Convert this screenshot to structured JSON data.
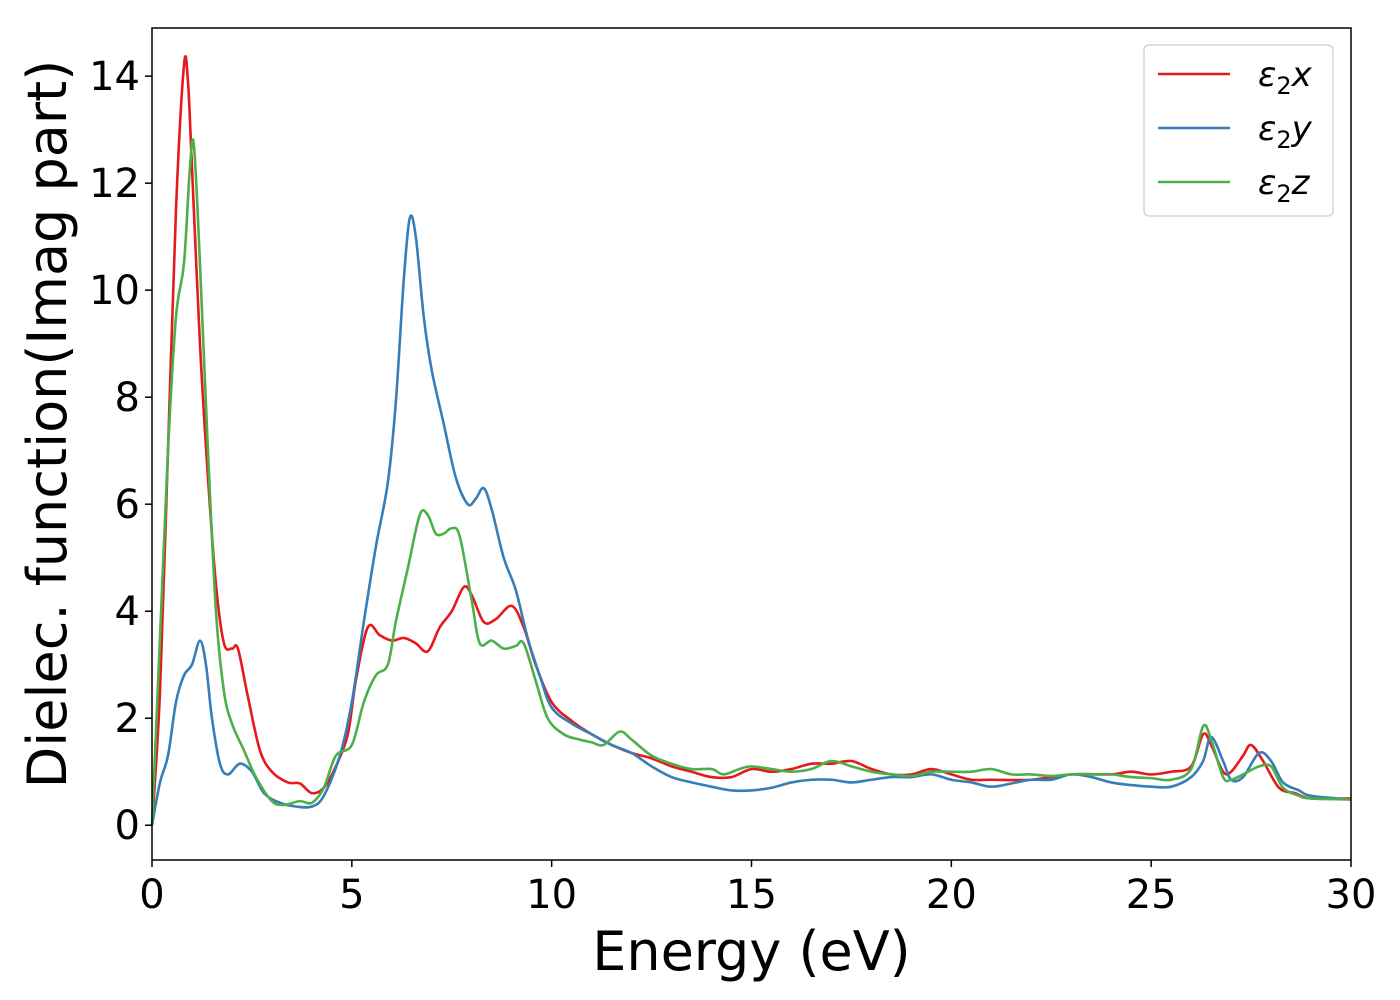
{
  "chart_data": {
    "type": "line",
    "xlabel": "Energy (eV)",
    "ylabel": "Dielec. function(Imag part)",
    "xlim": [
      0,
      30
    ],
    "ylim": [
      -0.65,
      14.9
    ],
    "xticks": [
      0,
      5,
      10,
      15,
      20,
      25,
      30
    ],
    "yticks": [
      0,
      2,
      4,
      6,
      8,
      10,
      12,
      14
    ],
    "grid": false,
    "legend_position": "top-right",
    "series": [
      {
        "name": "ε2x",
        "legend_base": "ε",
        "legend_sub": "2",
        "legend_suffix": "x",
        "color": "#e41a1c",
        "points": [
          [
            0,
            0
          ],
          [
            0.2,
            2.5
          ],
          [
            0.4,
            7.0
          ],
          [
            0.6,
            11.5
          ],
          [
            0.8,
            14.2
          ],
          [
            0.9,
            13.9
          ],
          [
            1.0,
            12.3
          ],
          [
            1.2,
            9.0
          ],
          [
            1.4,
            6.5
          ],
          [
            1.6,
            4.5
          ],
          [
            1.8,
            3.4
          ],
          [
            2.0,
            3.3
          ],
          [
            2.15,
            3.3
          ],
          [
            2.4,
            2.4
          ],
          [
            2.7,
            1.4
          ],
          [
            3.0,
            1.0
          ],
          [
            3.4,
            0.8
          ],
          [
            3.7,
            0.78
          ],
          [
            4.0,
            0.6
          ],
          [
            4.3,
            0.7
          ],
          [
            4.6,
            1.1
          ],
          [
            4.9,
            1.7
          ],
          [
            5.1,
            2.7
          ],
          [
            5.4,
            3.7
          ],
          [
            5.7,
            3.55
          ],
          [
            6.0,
            3.45
          ],
          [
            6.3,
            3.5
          ],
          [
            6.6,
            3.4
          ],
          [
            6.9,
            3.25
          ],
          [
            7.2,
            3.7
          ],
          [
            7.5,
            4.0
          ],
          [
            7.8,
            4.45
          ],
          [
            8.0,
            4.3
          ],
          [
            8.3,
            3.8
          ],
          [
            8.6,
            3.85
          ],
          [
            9.0,
            4.1
          ],
          [
            9.3,
            3.7
          ],
          [
            9.6,
            3.0
          ],
          [
            10.0,
            2.3
          ],
          [
            10.5,
            1.95
          ],
          [
            11.0,
            1.7
          ],
          [
            11.5,
            1.5
          ],
          [
            12.0,
            1.35
          ],
          [
            12.5,
            1.25
          ],
          [
            13.0,
            1.1
          ],
          [
            13.5,
            1.0
          ],
          [
            14.0,
            0.9
          ],
          [
            14.5,
            0.9
          ],
          [
            15.0,
            1.05
          ],
          [
            15.5,
            1.0
          ],
          [
            16.0,
            1.05
          ],
          [
            16.5,
            1.15
          ],
          [
            17.0,
            1.15
          ],
          [
            17.5,
            1.2
          ],
          [
            18.0,
            1.05
          ],
          [
            18.5,
            0.95
          ],
          [
            19.0,
            0.95
          ],
          [
            19.5,
            1.05
          ],
          [
            20.0,
            0.95
          ],
          [
            20.5,
            0.85
          ],
          [
            21.0,
            0.85
          ],
          [
            22.0,
            0.85
          ],
          [
            23.0,
            0.95
          ],
          [
            24.0,
            0.95
          ],
          [
            24.5,
            1.0
          ],
          [
            25.0,
            0.95
          ],
          [
            25.5,
            1.0
          ],
          [
            26.0,
            1.1
          ],
          [
            26.3,
            1.7
          ],
          [
            26.5,
            1.5
          ],
          [
            26.8,
            1.0
          ],
          [
            27.0,
            1.0
          ],
          [
            27.3,
            1.3
          ],
          [
            27.5,
            1.5
          ],
          [
            27.8,
            1.2
          ],
          [
            28.2,
            0.7
          ],
          [
            28.6,
            0.6
          ],
          [
            29.0,
            0.5
          ],
          [
            30.0,
            0.5
          ]
        ]
      },
      {
        "name": "ε2y",
        "legend_base": "ε",
        "legend_sub": "2",
        "legend_suffix": "y",
        "color": "#377eb8",
        "points": [
          [
            0,
            0
          ],
          [
            0.2,
            0.8
          ],
          [
            0.4,
            1.3
          ],
          [
            0.6,
            2.3
          ],
          [
            0.8,
            2.8
          ],
          [
            1.0,
            3.0
          ],
          [
            1.2,
            3.45
          ],
          [
            1.35,
            3.0
          ],
          [
            1.5,
            2.0
          ],
          [
            1.7,
            1.15
          ],
          [
            1.9,
            0.95
          ],
          [
            2.2,
            1.15
          ],
          [
            2.5,
            1.0
          ],
          [
            2.8,
            0.6
          ],
          [
            3.2,
            0.42
          ],
          [
            3.6,
            0.35
          ],
          [
            4.0,
            0.35
          ],
          [
            4.3,
            0.55
          ],
          [
            4.7,
            1.3
          ],
          [
            5.0,
            2.3
          ],
          [
            5.3,
            3.8
          ],
          [
            5.6,
            5.2
          ],
          [
            5.9,
            6.4
          ],
          [
            6.1,
            7.9
          ],
          [
            6.3,
            10.2
          ],
          [
            6.45,
            11.35
          ],
          [
            6.6,
            11.0
          ],
          [
            6.8,
            9.5
          ],
          [
            7.0,
            8.5
          ],
          [
            7.3,
            7.5
          ],
          [
            7.6,
            6.5
          ],
          [
            7.9,
            6.0
          ],
          [
            8.1,
            6.1
          ],
          [
            8.3,
            6.3
          ],
          [
            8.5,
            5.9
          ],
          [
            8.8,
            5.0
          ],
          [
            9.1,
            4.4
          ],
          [
            9.4,
            3.5
          ],
          [
            9.7,
            2.8
          ],
          [
            10.0,
            2.2
          ],
          [
            10.5,
            1.9
          ],
          [
            11.0,
            1.7
          ],
          [
            11.5,
            1.5
          ],
          [
            12.0,
            1.35
          ],
          [
            12.5,
            1.1
          ],
          [
            13.0,
            0.9
          ],
          [
            13.5,
            0.8
          ],
          [
            14.0,
            0.72
          ],
          [
            14.5,
            0.65
          ],
          [
            15.0,
            0.65
          ],
          [
            15.5,
            0.7
          ],
          [
            16.0,
            0.8
          ],
          [
            16.5,
            0.85
          ],
          [
            17.0,
            0.85
          ],
          [
            17.5,
            0.8
          ],
          [
            18.0,
            0.85
          ],
          [
            18.5,
            0.9
          ],
          [
            19.0,
            0.9
          ],
          [
            19.5,
            0.95
          ],
          [
            20.0,
            0.85
          ],
          [
            20.5,
            0.8
          ],
          [
            21.0,
            0.72
          ],
          [
            21.5,
            0.78
          ],
          [
            22.0,
            0.85
          ],
          [
            22.5,
            0.85
          ],
          [
            23.0,
            0.95
          ],
          [
            23.5,
            0.9
          ],
          [
            24.0,
            0.8
          ],
          [
            24.5,
            0.75
          ],
          [
            25.0,
            0.72
          ],
          [
            25.5,
            0.72
          ],
          [
            26.0,
            0.9
          ],
          [
            26.3,
            1.2
          ],
          [
            26.5,
            1.65
          ],
          [
            26.8,
            1.2
          ],
          [
            27.0,
            0.85
          ],
          [
            27.3,
            0.9
          ],
          [
            27.7,
            1.35
          ],
          [
            28.0,
            1.2
          ],
          [
            28.3,
            0.8
          ],
          [
            28.7,
            0.65
          ],
          [
            29.0,
            0.55
          ],
          [
            30.0,
            0.48
          ]
        ]
      },
      {
        "name": "ε2z",
        "legend_base": "ε",
        "legend_sub": "2",
        "legend_suffix": "z",
        "color": "#4daf4a",
        "points": [
          [
            0,
            0
          ],
          [
            0.2,
            3.5
          ],
          [
            0.4,
            7.0
          ],
          [
            0.6,
            9.5
          ],
          [
            0.8,
            10.5
          ],
          [
            0.95,
            12.3
          ],
          [
            1.05,
            12.7
          ],
          [
            1.2,
            10.5
          ],
          [
            1.4,
            7.0
          ],
          [
            1.6,
            4.0
          ],
          [
            1.8,
            2.5
          ],
          [
            2.0,
            1.9
          ],
          [
            2.3,
            1.4
          ],
          [
            2.6,
            0.9
          ],
          [
            3.0,
            0.45
          ],
          [
            3.3,
            0.38
          ],
          [
            3.7,
            0.45
          ],
          [
            4.0,
            0.42
          ],
          [
            4.3,
            0.7
          ],
          [
            4.6,
            1.3
          ],
          [
            5.0,
            1.5
          ],
          [
            5.3,
            2.3
          ],
          [
            5.6,
            2.8
          ],
          [
            5.9,
            3.0
          ],
          [
            6.1,
            3.8
          ],
          [
            6.4,
            4.8
          ],
          [
            6.7,
            5.8
          ],
          [
            6.9,
            5.8
          ],
          [
            7.1,
            5.45
          ],
          [
            7.3,
            5.45
          ],
          [
            7.5,
            5.55
          ],
          [
            7.7,
            5.4
          ],
          [
            8.0,
            4.2
          ],
          [
            8.2,
            3.4
          ],
          [
            8.5,
            3.45
          ],
          [
            8.8,
            3.3
          ],
          [
            9.1,
            3.35
          ],
          [
            9.3,
            3.4
          ],
          [
            9.6,
            2.7
          ],
          [
            9.9,
            2.0
          ],
          [
            10.3,
            1.7
          ],
          [
            10.7,
            1.6
          ],
          [
            11.0,
            1.55
          ],
          [
            11.3,
            1.5
          ],
          [
            11.7,
            1.75
          ],
          [
            12.0,
            1.6
          ],
          [
            12.5,
            1.3
          ],
          [
            13.0,
            1.15
          ],
          [
            13.5,
            1.05
          ],
          [
            14.0,
            1.05
          ],
          [
            14.3,
            0.95
          ],
          [
            14.7,
            1.05
          ],
          [
            15.0,
            1.1
          ],
          [
            15.5,
            1.05
          ],
          [
            16.0,
            1.0
          ],
          [
            16.5,
            1.05
          ],
          [
            17.0,
            1.2
          ],
          [
            17.5,
            1.1
          ],
          [
            18.0,
            1.0
          ],
          [
            18.5,
            0.95
          ],
          [
            19.0,
            0.92
          ],
          [
            19.5,
            1.0
          ],
          [
            20.0,
            1.0
          ],
          [
            20.5,
            1.0
          ],
          [
            21.0,
            1.05
          ],
          [
            21.5,
            0.95
          ],
          [
            22.0,
            0.95
          ],
          [
            22.5,
            0.92
          ],
          [
            23.0,
            0.95
          ],
          [
            23.5,
            0.95
          ],
          [
            24.0,
            0.95
          ],
          [
            24.5,
            0.9
          ],
          [
            25.0,
            0.88
          ],
          [
            25.5,
            0.85
          ],
          [
            26.0,
            1.05
          ],
          [
            26.3,
            1.85
          ],
          [
            26.5,
            1.6
          ],
          [
            26.8,
            0.9
          ],
          [
            27.0,
            0.85
          ],
          [
            27.3,
            0.95
          ],
          [
            27.7,
            1.1
          ],
          [
            28.0,
            1.1
          ],
          [
            28.3,
            0.7
          ],
          [
            28.7,
            0.55
          ],
          [
            29.0,
            0.5
          ],
          [
            30.0,
            0.48
          ]
        ]
      }
    ]
  }
}
